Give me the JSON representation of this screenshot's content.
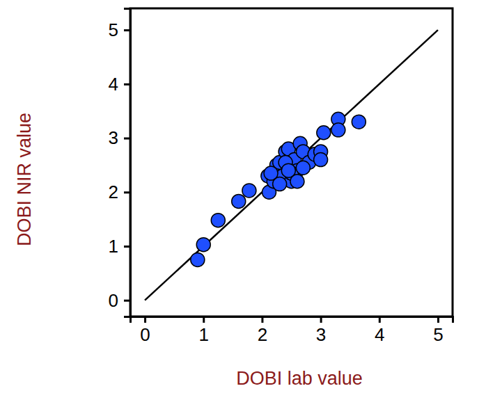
{
  "chart_data": {
    "type": "scatter",
    "x_label": "DOBI lab value",
    "y_label": "DOBI NIR value",
    "xlim": [
      -0.25,
      5.25
    ],
    "ylim": [
      -0.3,
      5.4
    ],
    "xticks": [
      0,
      1,
      2,
      3,
      4,
      5
    ],
    "yticks": [
      0,
      1,
      2,
      3,
      4,
      5
    ],
    "grid": false,
    "series": [
      {
        "type": "scatter",
        "marker": "circle",
        "color": "#1f4fff",
        "x": [
          0.9,
          1.0,
          1.25,
          1.6,
          1.78,
          2.1,
          2.12,
          2.2,
          2.25,
          2.3,
          2.35,
          2.4,
          2.45,
          2.5,
          2.55,
          2.6,
          2.65,
          2.7,
          2.8,
          2.9,
          3.0,
          3.0,
          3.05,
          3.3,
          3.3,
          3.65,
          2.4,
          2.5,
          2.6,
          2.3,
          2.15,
          2.7,
          2.45
        ],
        "values": [
          0.75,
          1.03,
          1.48,
          1.83,
          2.03,
          2.3,
          2.0,
          2.2,
          2.5,
          2.55,
          2.3,
          2.75,
          2.8,
          2.2,
          2.6,
          2.4,
          2.9,
          2.75,
          2.55,
          2.7,
          2.75,
          2.6,
          3.1,
          3.35,
          3.15,
          3.3,
          2.55,
          2.35,
          2.2,
          2.15,
          2.35,
          2.45,
          2.4
        ]
      },
      {
        "type": "line",
        "line_style": "solid",
        "color": "#000000",
        "x": [
          0,
          5
        ],
        "values": [
          0,
          5
        ]
      }
    ]
  }
}
